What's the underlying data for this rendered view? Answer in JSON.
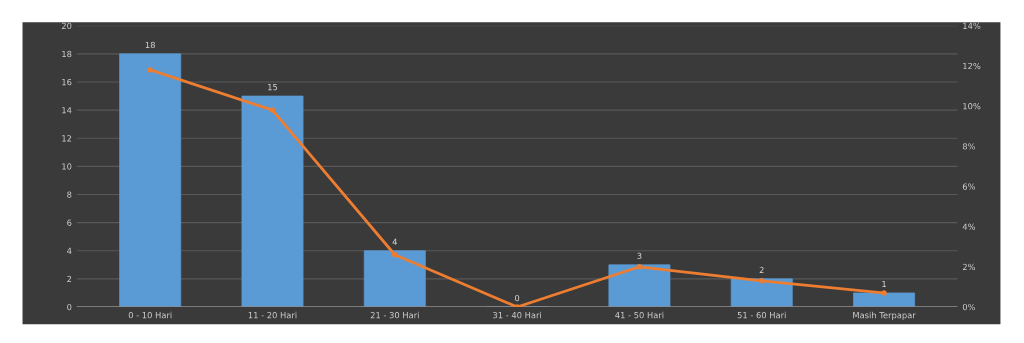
{
  "chart_data": {
    "type": "bar",
    "categories": [
      "0 - 10 Hari",
      "11 - 20 Hari",
      "21 - 30 Hari",
      "31 - 40 Hari",
      "41 - 50 Hari",
      "51 - 60 Hari",
      "Masih Terpapar"
    ],
    "series": [
      {
        "color": "#5b9bd5",
        "values": [
          18,
          15,
          4,
          0,
          3,
          2,
          1
        ],
        "value_labels": [
          "18",
          "15",
          "4",
          "0",
          "3",
          "2",
          "1"
        ]
      },
      {
        "type": "line",
        "axis": "y2",
        "color": "#ed7d31",
        "marker": "circle",
        "values": [
          11.8,
          9.8,
          2.6,
          0,
          2.0,
          1.3,
          0.7
        ]
      }
    ],
    "ylim": [
      0,
      20
    ],
    "yticks": [
      0,
      2,
      4,
      6,
      8,
      10,
      12,
      14,
      16,
      18,
      20
    ],
    "y2lim": [
      0,
      14
    ],
    "y2ticks": [
      {
        "value": 0,
        "label": "0%"
      },
      {
        "value": 2,
        "label": "2%"
      },
      {
        "value": 4,
        "label": "4%"
      },
      {
        "value": 6,
        "label": "6%"
      },
      {
        "value": 8,
        "label": "8%"
      },
      {
        "value": 10,
        "label": "10%"
      },
      {
        "value": 12,
        "label": "12%"
      },
      {
        "value": 14,
        "label": "14%"
      }
    ],
    "grid": "y"
  }
}
